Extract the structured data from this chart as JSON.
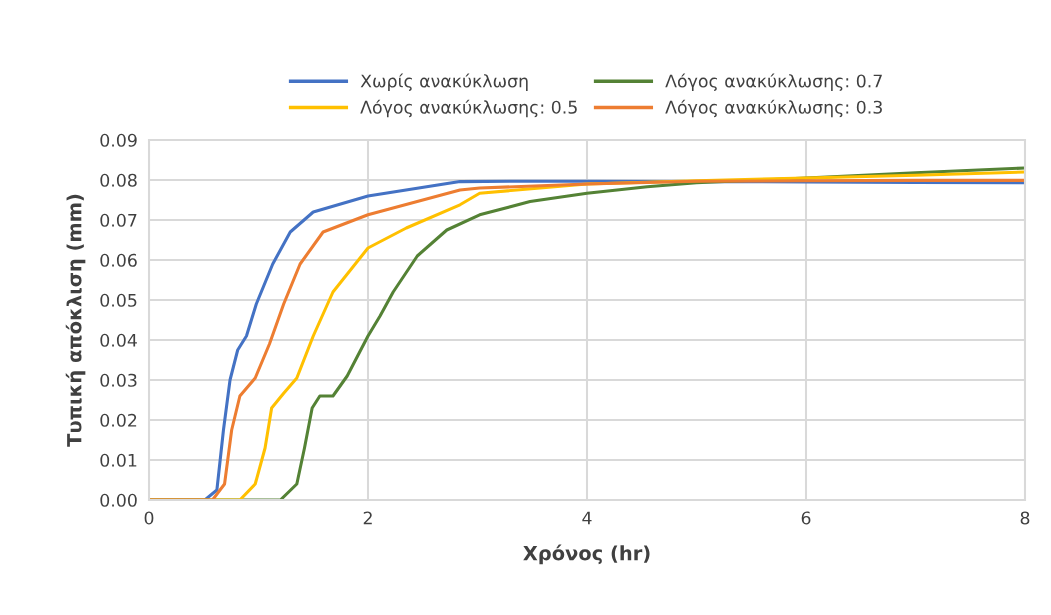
{
  "chart_data": {
    "type": "line",
    "xlabel": "Χρόνος (hr)",
    "ylabel": "Τυπική απόκλιση (mm)",
    "xlim": [
      0,
      8
    ],
    "xticks": [
      0,
      2,
      4,
      6,
      8
    ],
    "ylim": [
      0,
      0.09
    ],
    "yticks": [
      {
        "value": 0,
        "label": "0.00"
      },
      {
        "value": 0.01,
        "label": "0.01"
      },
      {
        "value": 0.02,
        "label": "0.02"
      },
      {
        "value": 0.03,
        "label": "0.03"
      },
      {
        "value": 0.04,
        "label": "0.04"
      },
      {
        "value": 0.05,
        "label": "0.05"
      },
      {
        "value": 0.06,
        "label": "0.06"
      },
      {
        "value": 0.07,
        "label": "0.07"
      },
      {
        "value": 0.08,
        "label": "0.08"
      },
      {
        "value": 0.09,
        "label": "0.09"
      }
    ],
    "grid": true,
    "legend": "top",
    "marker": "none",
    "line_style": "solid",
    "series": [
      {
        "name": "Χωρίς ανακύκλωση",
        "color": "#4472c4",
        "x": [
          0,
          0.51,
          0.62,
          0.68,
          0.74,
          0.81,
          0.89,
          0.98,
          1.13,
          1.29,
          1.5,
          2.0,
          2.84,
          3.5,
          4.0,
          5.0,
          6.0,
          7.0,
          8.0
        ],
        "values": [
          0,
          0,
          0.0025,
          0.0175,
          0.03,
          0.0375,
          0.041,
          0.049,
          0.059,
          0.067,
          0.072,
          0.076,
          0.0796,
          0.0797,
          0.0797,
          0.0796,
          0.0795,
          0.0794,
          0.0793
        ]
      },
      {
        "name": "Λόγος ανακύκλωσης: 0.7",
        "color": "#548235",
        "x": [
          0,
          1.2,
          1.35,
          1.42,
          1.49,
          1.56,
          1.68,
          1.81,
          2.0,
          2.11,
          2.23,
          2.45,
          2.72,
          3.02,
          3.48,
          4.0,
          4.55,
          5.0,
          6.0,
          7.0,
          8.0
        ],
        "values": [
          0,
          0,
          0.004,
          0.013,
          0.023,
          0.026,
          0.026,
          0.031,
          0.041,
          0.046,
          0.052,
          0.061,
          0.0675,
          0.0713,
          0.0746,
          0.0767,
          0.0783,
          0.0793,
          0.0805,
          0.0818,
          0.083
        ]
      },
      {
        "name": "Λόγος ανακύκλωσης: 0.5",
        "color": "#ffc000",
        "x": [
          0,
          0.83,
          0.97,
          1.06,
          1.12,
          1.23,
          1.35,
          1.5,
          1.68,
          2.0,
          2.35,
          2.84,
          3.02,
          4.0,
          5.0,
          6.0,
          7.0,
          8.0
        ],
        "values": [
          0,
          0,
          0.004,
          0.013,
          0.023,
          0.0267,
          0.0305,
          0.041,
          0.052,
          0.063,
          0.068,
          0.0738,
          0.0767,
          0.079,
          0.0798,
          0.0805,
          0.0812,
          0.082
        ]
      },
      {
        "name": "Λόγος ανακύκλωσης: 0.3",
        "color": "#ed7d31",
        "x": [
          0,
          0.58,
          0.69,
          0.755,
          0.83,
          0.97,
          1.1,
          1.23,
          1.38,
          1.59,
          2.0,
          2.84,
          3.02,
          4.0,
          5.0,
          6.0,
          7.0,
          8.0
        ],
        "values": [
          0,
          0,
          0.004,
          0.0175,
          0.026,
          0.0305,
          0.039,
          0.049,
          0.059,
          0.067,
          0.0713,
          0.0775,
          0.078,
          0.079,
          0.0797,
          0.0798,
          0.0799,
          0.0799
        ]
      }
    ]
  }
}
